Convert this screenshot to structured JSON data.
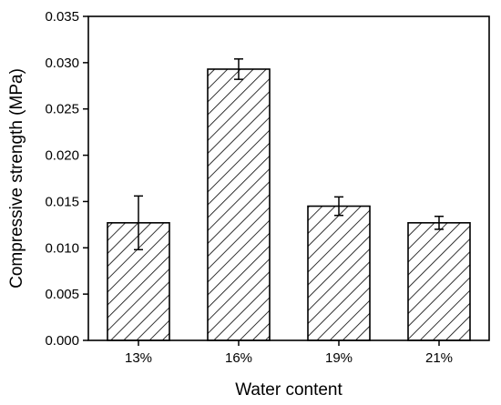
{
  "chart_data": {
    "type": "bar",
    "title": "",
    "xlabel": "Water content",
    "ylabel": "Compressive strength (MPa)",
    "categories": [
      "13%",
      "16%",
      "19%",
      "21%"
    ],
    "values": [
      0.0127,
      0.0293,
      0.0145,
      0.0127
    ],
    "errors": [
      0.0029,
      0.0011,
      0.001,
      0.0007
    ],
    "ylim": [
      0,
      0.035
    ],
    "yticks": [
      "0.000",
      "0.005",
      "0.010",
      "0.015",
      "0.020",
      "0.025",
      "0.030",
      "0.035"
    ],
    "grid": false,
    "legend": "none",
    "bar_fill": "hatched",
    "colors": {
      "bar_edge": "#000000",
      "hatch": "#000000",
      "background": "#ffffff"
    }
  }
}
